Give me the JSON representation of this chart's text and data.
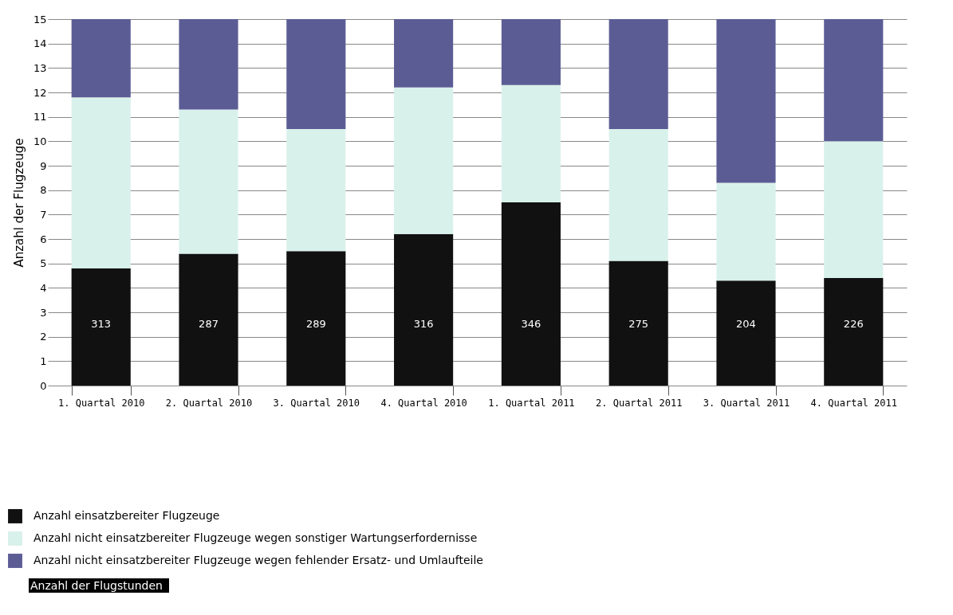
{
  "chart_data": {
    "type": "bar",
    "stacked": true,
    "ylabel": "Anzahl der Flugzeuge",
    "categories": [
      "1. Quartal 2010",
      "2. Quartal 2010",
      "3. Quartal 2010",
      "4. Quartal 2010",
      "1. Quartal 2011",
      "2. Quartal 2011",
      "3. Quartal 2011",
      "4. Quartal 2011"
    ],
    "series": [
      {
        "name": "Anzahl einsatzbereiter Flugzeuge",
        "color": "#111111",
        "values": [
          4.8,
          5.4,
          5.5,
          6.2,
          7.5,
          5.1,
          4.3,
          4.4
        ]
      },
      {
        "name": "Anzahl nicht einsatzbereiter Flugzeuge wegen sonstiger Wartungserfordernisse",
        "color": "#d9f1eb",
        "values": [
          7.0,
          5.9,
          5.0,
          6.0,
          4.8,
          5.4,
          4.0,
          5.6
        ]
      },
      {
        "name": "Anzahl nicht einsatzbereiter Flugzeuge wegen fehlender Ersatz- und Umlaufteile",
        "color": "#5c5c95",
        "values": [
          3.2,
          3.7,
          4.5,
          2.8,
          2.7,
          4.5,
          6.7,
          5.0
        ]
      }
    ],
    "ylim": [
      0,
      15
    ],
    "yticks": [
      0,
      1,
      2,
      3,
      4,
      5,
      6,
      7,
      8,
      9,
      10,
      11,
      12,
      13,
      14,
      15
    ],
    "grid": "y",
    "legend": "bottom",
    "annotations": [
      "313",
      "287",
      "289",
      "316",
      "346",
      "275",
      "204",
      "226",
      "Anzahl der Flugstunden"
    ]
  }
}
